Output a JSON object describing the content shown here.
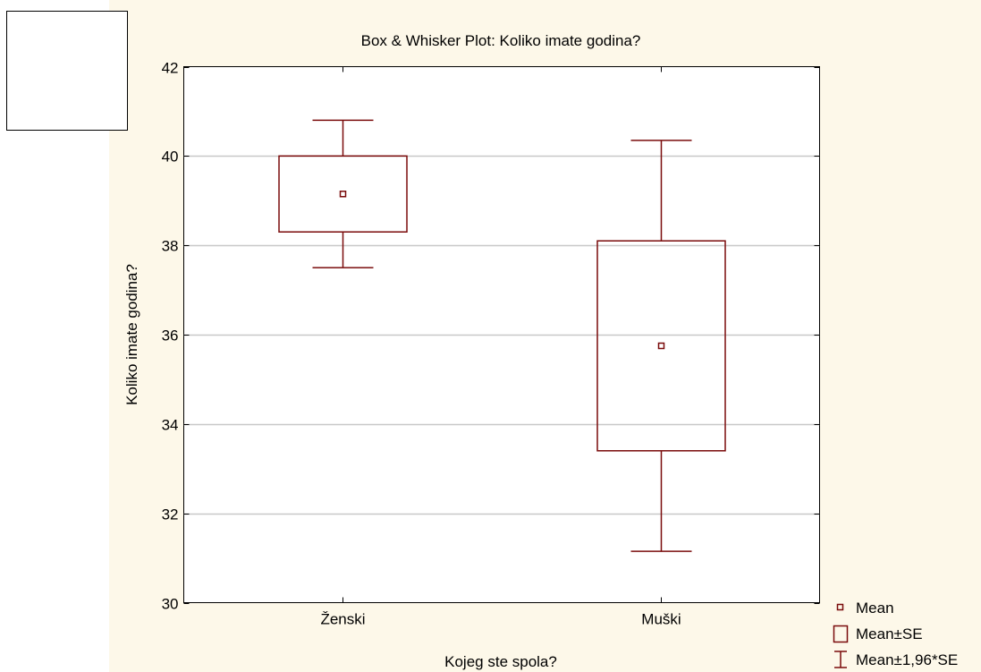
{
  "chart_data": {
    "type": "box",
    "title": "Box & Whisker Plot: Koliko imate godina?",
    "xlabel": "Kojeg ste spola?",
    "ylabel": "Koliko imate godina?",
    "ylim": [
      30,
      42
    ],
    "yticks": [
      30,
      32,
      34,
      36,
      38,
      40,
      42
    ],
    "yticks_labels": [
      "30",
      "32",
      "34",
      "36",
      "38",
      "40",
      "42"
    ],
    "grid": true,
    "categories": [
      "Ženski",
      "Muški"
    ],
    "series": [
      {
        "category": "Ženski",
        "mean": 39.15,
        "se_low": 38.3,
        "se_high": 40.0,
        "ci_low": 37.5,
        "ci_high": 40.8
      },
      {
        "category": "Muški",
        "mean": 35.75,
        "se_low": 33.4,
        "se_high": 38.1,
        "ci_low": 31.15,
        "ci_high": 40.35
      }
    ],
    "legend": {
      "placement": "bottom-right",
      "items": [
        "Mean",
        "Mean±SE",
        "Mean±1,96*SE"
      ]
    },
    "colors": {
      "box": "#7a0b0b",
      "grid": "#c8c8c8",
      "background": "#fdf8e9",
      "plot_background": "#ffffff"
    }
  }
}
